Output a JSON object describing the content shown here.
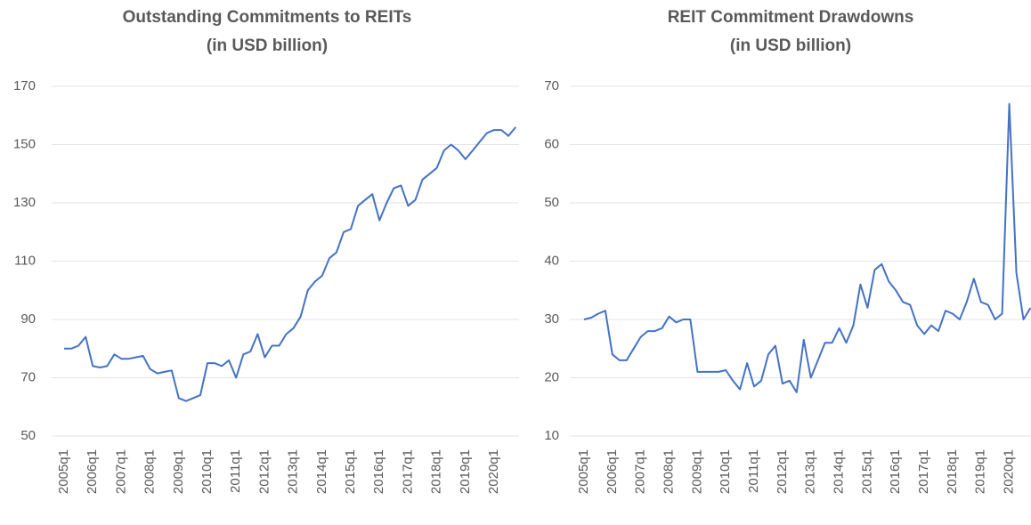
{
  "chart_data": [
    {
      "type": "line",
      "title": "Outstanding Commitments to REITs",
      "subtitle": "(in USD billion)",
      "categories": [
        "2005q1",
        null,
        null,
        null,
        "2006q1",
        null,
        null,
        null,
        "2007q1",
        null,
        null,
        null,
        "2008q1",
        null,
        null,
        null,
        "2009q1",
        null,
        null,
        null,
        "2010q1",
        null,
        null,
        null,
        "2011q1",
        null,
        null,
        null,
        "2012q1",
        null,
        null,
        null,
        "2013q1",
        null,
        null,
        null,
        "2014q1",
        null,
        null,
        null,
        "2015q1",
        null,
        null,
        null,
        "2016q1",
        null,
        null,
        null,
        "2017q1",
        null,
        null,
        null,
        "2018q1",
        null,
        null,
        null,
        "2019q1",
        null,
        null,
        null,
        "2020q1",
        null,
        null,
        null
      ],
      "values": [
        80,
        80,
        81,
        84,
        74,
        73.5,
        74,
        78,
        76.5,
        76.5,
        77,
        77.5,
        73,
        71.5,
        72,
        72.5,
        63,
        62,
        63,
        64,
        75,
        75,
        74,
        76,
        70,
        78,
        79,
        85,
        77,
        81,
        81,
        85,
        87,
        91,
        100,
        103,
        105,
        111,
        113,
        120,
        121,
        129,
        131,
        133,
        124,
        130,
        135,
        136,
        129,
        131,
        138,
        140,
        142,
        148,
        150,
        148,
        145,
        148,
        151,
        154,
        155,
        155,
        153,
        156
      ],
      "color": "#4472c4",
      "ylim": [
        50,
        170
      ],
      "yticks": [
        50,
        70,
        90,
        110,
        130,
        150,
        170
      ],
      "grid": true
    },
    {
      "type": "line",
      "title": "REIT Commitment Drawdowns",
      "subtitle": "(in USD billion)",
      "categories": [
        "2005q1",
        null,
        null,
        null,
        "2006q1",
        null,
        null,
        null,
        "2007q1",
        null,
        null,
        null,
        "2008q1",
        null,
        null,
        null,
        "2009q1",
        null,
        null,
        null,
        "2010q1",
        null,
        null,
        null,
        "2011q1",
        null,
        null,
        null,
        "2012q1",
        null,
        null,
        null,
        "2013q1",
        null,
        null,
        null,
        "2014q1",
        null,
        null,
        null,
        "2015q1",
        null,
        null,
        null,
        "2016q1",
        null,
        null,
        null,
        "2017q1",
        null,
        null,
        null,
        "2018q1",
        null,
        null,
        null,
        "2019q1",
        null,
        null,
        null,
        "2020q1",
        null,
        null,
        null
      ],
      "values": [
        30,
        30.3,
        31,
        31.5,
        24,
        23,
        23,
        25,
        27,
        28,
        28,
        28.5,
        30.5,
        29.5,
        30,
        30,
        21,
        21,
        21,
        21,
        21.3,
        19.5,
        18,
        22.5,
        18.5,
        19.5,
        24,
        25.5,
        19,
        19.5,
        17.5,
        26.5,
        20,
        23,
        26,
        26,
        28.5,
        26,
        29,
        36,
        32,
        38.5,
        39.5,
        36.5,
        35,
        33,
        32.5,
        29,
        27.5,
        29,
        28,
        31.5,
        31,
        30,
        33,
        37,
        33,
        32.5,
        30,
        31,
        67,
        38,
        30,
        32
      ],
      "color": "#4472c4",
      "ylim": [
        10,
        70
      ],
      "yticks": [
        10,
        20,
        30,
        40,
        50,
        60,
        70
      ],
      "grid": true
    }
  ]
}
